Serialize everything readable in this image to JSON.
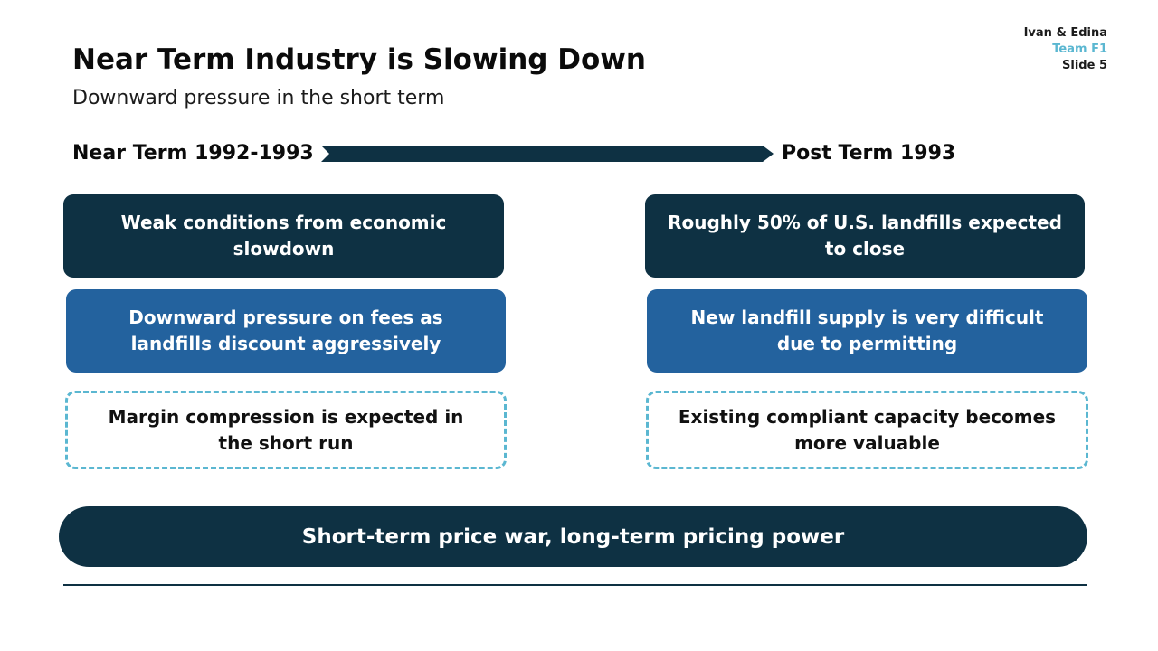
{
  "meta": {
    "authors": "Ivan & Edina",
    "team": "Team F1",
    "slide": "Slide 5"
  },
  "title": "Near Term Industry is Slowing Down",
  "subtitle": "Downward pressure in the short term",
  "timeline": {
    "left_label": "Near Term 1992-1993",
    "right_label": "Post Term 1993"
  },
  "left_column": [
    "Weak conditions from economic slowdown",
    "Downward pressure on fees as landfills discount aggressively",
    "Margin compression is expected in the short run"
  ],
  "right_column": [
    "Roughly 50% of U.S. landfills expected to close",
    "New landfill supply is very difficult due to permitting",
    "Existing compliant capacity becomes more valuable"
  ],
  "banner": "Short-term price war, long-term pricing power",
  "colors": {
    "dark_navy": "#0e3143",
    "medium_blue": "#23629e",
    "accent_teal": "#5bb7d1"
  }
}
